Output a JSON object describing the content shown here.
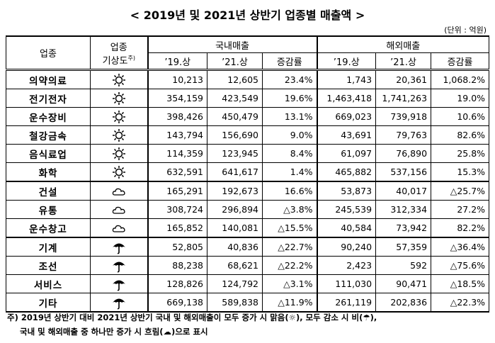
{
  "title": "< 2019년 및 2021년 상반기 업종별 매출액 >",
  "unit": "(단위 : 억원)",
  "header": {
    "industry": "업종",
    "weather": [
      "업종",
      "기상도",
      "주)"
    ],
    "domestic": "국내매출",
    "overseas": "해외매출",
    "sub": [
      "’19.상",
      "’21.상",
      "증감률",
      "’19.상",
      "’21.상",
      "증감률"
    ]
  },
  "rows": [
    [
      "의약의료",
      "10,213",
      "12,605",
      "23.4%",
      "1,743",
      "20,361",
      "1,068.2%"
    ],
    [
      "전기전자",
      "354,159",
      "423,549",
      "19.6%",
      "1,463,418",
      "1,741,263",
      "19.0%"
    ],
    [
      "운수장비",
      "398,426",
      "450,479",
      "13.1%",
      "669,023",
      "739,918",
      "10.6%"
    ],
    [
      "철강금속",
      "143,794",
      "156,690",
      "9.0%",
      "43,691",
      "79,763",
      "82.6%"
    ],
    [
      "음식료업",
      "114,359",
      "123,945",
      "8.4%",
      "61,097",
      "76,890",
      "25.8%"
    ],
    [
      "화학",
      "632,591",
      "641,617",
      "1.4%",
      "465,882",
      "537,156",
      "15.3%"
    ],
    [
      "건설",
      "165,291",
      "192,673",
      "16.6%",
      "53,873",
      "40,017",
      "△25.7%"
    ],
    [
      "유통",
      "308,724",
      "296,894",
      "△3.8%",
      "245,539",
      "312,334",
      "27.2%"
    ],
    [
      "운수창고",
      "165,852",
      "140,081",
      "△15.5%",
      "40,584",
      "73,942",
      "82.2%"
    ],
    [
      "기계",
      "52,805",
      "40,836",
      "△22.7%",
      "90,240",
      "57,359",
      "△36.4%"
    ],
    [
      "조선",
      "88,238",
      "68,621",
      "△22.2%",
      "2,423",
      "592",
      "△75.6%"
    ],
    [
      "서비스",
      "128,826",
      "124,792",
      "△3.1%",
      "111,030",
      "90,471",
      "△18.5%"
    ],
    [
      "기타",
      "669,138",
      "589,838",
      "△11.9%",
      "261,119",
      "202,836",
      "△22.3%"
    ]
  ],
  "footnote": [
    "주) 2019년 상반기 대비 2021년 상반기 국내 및 해외매출이 모두 증가 시 맑음(☼), 모두 감소 시 비(☂),",
    "국내 및 해외매출 중 하나만 증가 시 흐림(☁)으로 표시"
  ]
}
